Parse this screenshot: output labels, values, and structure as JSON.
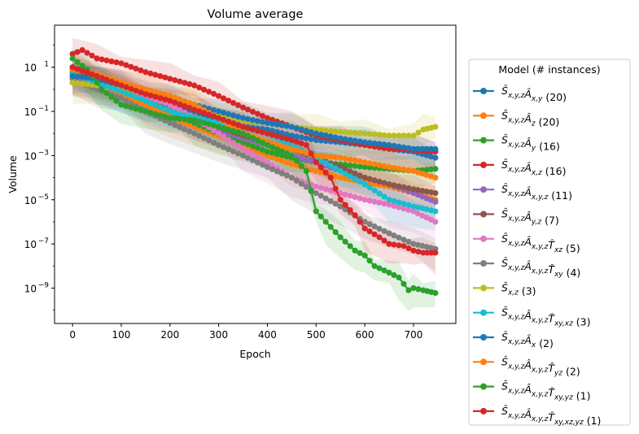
{
  "chart_data": {
    "type": "line",
    "title": "Volume average",
    "xlabel": "Epoch",
    "ylabel": "Volume",
    "xlim": [
      -37,
      787
    ],
    "ylim": [
      2.5e-11,
      800
    ],
    "yscale": "log",
    "xticks": [
      0,
      100,
      200,
      300,
      400,
      500,
      600,
      700
    ],
    "yticks": [
      {
        "value": 1e-09,
        "base": "10",
        "exp": "−9"
      },
      {
        "value": 1e-07,
        "base": "10",
        "exp": "−7"
      },
      {
        "value": 1e-05,
        "base": "10",
        "exp": "−5"
      },
      {
        "value": 0.001,
        "base": "10",
        "exp": "−3"
      },
      {
        "value": 0.1,
        "base": "10",
        "exp": "−1"
      },
      {
        "value": 10,
        "base": "10",
        "exp": "1"
      }
    ],
    "grid": false,
    "legend": {
      "title": "Model (# instances)",
      "placement": "outside-right"
    },
    "series": [
      {
        "name": "Ŝx,y,zÂx,y (20)",
        "color": "#1f77b4",
        "legend": {
          "S": "x,y,z",
          "A": "x,y",
          "T": "",
          "n": "(20)"
        },
        "x": [
          0,
          50,
          100,
          150,
          200,
          250,
          300,
          350,
          400,
          450,
          500,
          550,
          600,
          650,
          700,
          745
        ],
        "y": [
          8,
          3,
          0.8,
          0.25,
          0.2,
          0.1,
          0.04,
          0.02,
          0.015,
          0.008,
          0.005,
          0.004,
          0.003,
          0.002,
          0.0015,
          0.0008
        ]
      },
      {
        "name": "Ŝx,y,zÂz (20)",
        "color": "#ff7f0e",
        "legend": {
          "S": "x,y,z",
          "A": "z",
          "T": "",
          "n": "(20)"
        },
        "x": [
          0,
          50,
          100,
          150,
          200,
          250,
          300,
          350,
          400,
          450,
          500,
          550,
          600,
          650,
          700,
          745
        ],
        "y": [
          3,
          1.5,
          0.6,
          0.2,
          0.06,
          0.02,
          0.008,
          0.003,
          0.001,
          0.0004,
          0.0002,
          0.0001,
          6e-05,
          4e-05,
          2e-05,
          1e-05
        ]
      },
      {
        "name": "Ŝx,y,zÂy (16)",
        "color": "#2ca02c",
        "legend": {
          "S": "x,y,z",
          "A": "y",
          "T": "",
          "n": "(16)"
        },
        "x": [
          0,
          50,
          100,
          150,
          200,
          250,
          300,
          350,
          400,
          450,
          500,
          550,
          600,
          650,
          700,
          745
        ],
        "y": [
          10,
          4,
          1.2,
          0.4,
          0.1,
          0.03,
          0.01,
          0.004,
          0.0015,
          0.0008,
          0.0005,
          0.0004,
          0.0003,
          0.00025,
          0.0002,
          0.00025
        ]
      },
      {
        "name": "Ŝx,y,zÂx,z (16)",
        "color": "#d62728",
        "legend": {
          "S": "x,y,z",
          "A": "x,z",
          "T": "",
          "n": "(16)"
        },
        "x": [
          0,
          20,
          50,
          100,
          150,
          200,
          250,
          300,
          350,
          400,
          450,
          500,
          550,
          600,
          650,
          700,
          745
        ],
        "y": [
          40,
          60,
          25,
          15,
          6,
          3,
          1.5,
          0.5,
          0.15,
          0.05,
          0.02,
          0.008,
          0.005,
          0.003,
          0.002,
          0.0018,
          0.0015
        ]
      },
      {
        "name": "Ŝx,y,zÂx,y,z (11)",
        "color": "#9467bd",
        "legend": {
          "S": "x,y,z",
          "A": "x,y,z",
          "T": "",
          "n": "(11)"
        },
        "x": [
          0,
          50,
          100,
          150,
          200,
          250,
          300,
          350,
          400,
          450,
          500,
          550,
          600,
          650,
          700,
          745
        ],
        "y": [
          6,
          2,
          0.8,
          0.3,
          0.1,
          0.04,
          0.015,
          0.006,
          0.003,
          0.001,
          0.0005,
          0.0002,
          0.0001,
          5e-05,
          2e-05,
          8e-06
        ]
      },
      {
        "name": "Ŝx,y,zÂy,z (7)",
        "color": "#8c564b",
        "legend": {
          "S": "x,y,z",
          "A": "y,z",
          "T": "",
          "n": "(7)"
        },
        "x": [
          0,
          50,
          100,
          150,
          200,
          250,
          300,
          350,
          400,
          450,
          500,
          550,
          600,
          650,
          700,
          745
        ],
        "y": [
          5,
          3,
          1,
          0.3,
          0.1,
          0.05,
          0.02,
          0.008,
          0.004,
          0.002,
          0.0008,
          0.0003,
          0.0001,
          5e-05,
          3e-05,
          2e-05
        ]
      },
      {
        "name": "Ŝx,y,zÂx,y,zT̂xz (5)",
        "color": "#e377c2",
        "legend": {
          "S": "x,y,z",
          "A": "x,y,z",
          "T": "xz",
          "n": "(5)"
        },
        "x": [
          0,
          50,
          100,
          150,
          200,
          250,
          300,
          350,
          400,
          450,
          500,
          550,
          600,
          650,
          700,
          745
        ],
        "y": [
          2,
          1.5,
          1,
          0.5,
          0.2,
          0.05,
          0.01,
          0.002,
          0.0005,
          0.0001,
          4e-05,
          2e-05,
          1e-05,
          6e-06,
          3e-06,
          1e-06
        ]
      },
      {
        "name": "Ŝx,y,zÂx,y,zT̂xy (4)",
        "color": "#7f7f7f",
        "legend": {
          "S": "x,y,z",
          "A": "x,y,z",
          "T": "xy",
          "n": "(4)"
        },
        "x": [
          0,
          50,
          100,
          150,
          200,
          250,
          300,
          350,
          400,
          450,
          500,
          550,
          600,
          650,
          700,
          745
        ],
        "y": [
          3,
          1,
          0.4,
          0.1,
          0.03,
          0.01,
          0.003,
          0.001,
          0.0003,
          0.0001,
          2e-05,
          5e-06,
          1e-06,
          3e-07,
          1e-07,
          6e-08
        ]
      },
      {
        "name": "Ŝx,z (3)",
        "color": "#bcbd22",
        "legend": {
          "S": "x,z",
          "A": "",
          "T": "",
          "n": "(3)"
        },
        "x": [
          0,
          50,
          100,
          150,
          200,
          250,
          300,
          350,
          400,
          450,
          500,
          550,
          600,
          650,
          700,
          720,
          745
        ],
        "y": [
          2,
          1.5,
          1,
          0.7,
          0.4,
          0.2,
          0.08,
          0.04,
          0.03,
          0.02,
          0.015,
          0.012,
          0.01,
          0.008,
          0.008,
          0.015,
          0.02
        ]
      },
      {
        "name": "Ŝx,y,zÂx,y,zT̂xy,xz (3)",
        "color": "#17becf",
        "legend": {
          "S": "x,y,z",
          "A": "x,y,z",
          "T": "xy,xz",
          "n": "(3)"
        },
        "x": [
          0,
          50,
          100,
          150,
          200,
          250,
          300,
          350,
          400,
          450,
          500,
          550,
          600,
          650,
          700,
          745
        ],
        "y": [
          5,
          2,
          0.8,
          0.3,
          0.1,
          0.05,
          0.03,
          0.02,
          0.01,
          0.003,
          0.0008,
          0.0002,
          5e-05,
          1e-05,
          5e-06,
          3e-06
        ]
      },
      {
        "name": "Ŝx,y,zÂx (2)",
        "color": "#1f77b4",
        "legend": {
          "S": "x,y,z",
          "A": "x",
          "T": "",
          "n": "(2)"
        },
        "x": [
          0,
          50,
          100,
          150,
          200,
          250,
          300,
          350,
          400,
          450,
          500,
          550,
          600,
          650,
          700,
          745
        ],
        "y": [
          4,
          3,
          1.5,
          0.8,
          0.4,
          0.2,
          0.1,
          0.05,
          0.03,
          0.02,
          0.01,
          0.006,
          0.004,
          0.003,
          0.002,
          0.002
        ]
      },
      {
        "name": "Ŝx,y,zÂx,y,zT̂yz (2)",
        "color": "#ff7f0e",
        "legend": {
          "S": "x,y,z",
          "A": "x,y,z",
          "T": "yz",
          "n": "(2)"
        },
        "x": [
          0,
          50,
          100,
          150,
          200,
          250,
          300,
          350,
          400,
          450,
          500,
          550,
          600,
          650,
          700,
          745
        ],
        "y": [
          8,
          5,
          2,
          1,
          0.5,
          0.2,
          0.05,
          0.01,
          0.004,
          0.002,
          0.001,
          0.0008,
          0.0005,
          0.0003,
          0.0002,
          0.0001
        ]
      },
      {
        "name": "Ŝx,y,zÂx,y,zT̂xy,yz (1)",
        "color": "#2ca02c",
        "legend": {
          "S": "x,y,z",
          "A": "x,y,z",
          "T": "xy,yz",
          "n": "(1)"
        },
        "x": [
          0,
          30,
          60,
          100,
          150,
          200,
          250,
          300,
          350,
          400,
          450,
          480,
          500,
          520,
          550,
          580,
          600,
          620,
          650,
          670,
          690,
          700,
          720,
          745
        ],
        "y": [
          25,
          8,
          1,
          0.2,
          0.1,
          0.05,
          0.04,
          0.02,
          0.01,
          0.003,
          0.001,
          0.0002,
          3e-06,
          1e-06,
          2e-07,
          5e-08,
          3e-08,
          1e-08,
          5e-09,
          3e-09,
          8e-10,
          1e-09,
          8e-10,
          6e-10
        ]
      },
      {
        "name": "Ŝx,y,zÂx,y,zT̂xy,xz,yz (1)",
        "color": "#d62728",
        "legend": {
          "S": "x,y,z",
          "A": "x,y,z",
          "T": "xy,xz,yz",
          "n": "(1)"
        },
        "x": [
          0,
          50,
          100,
          150,
          200,
          250,
          300,
          350,
          400,
          450,
          480,
          500,
          530,
          550,
          580,
          600,
          630,
          650,
          680,
          700,
          720,
          745
        ],
        "y": [
          10,
          4,
          1.5,
          0.6,
          0.3,
          0.12,
          0.05,
          0.02,
          0.01,
          0.005,
          0.003,
          0.0005,
          0.0001,
          1e-05,
          2e-06,
          5e-07,
          2e-07,
          1e-07,
          8e-08,
          5e-08,
          4e-08,
          4e-08
        ]
      }
    ]
  }
}
